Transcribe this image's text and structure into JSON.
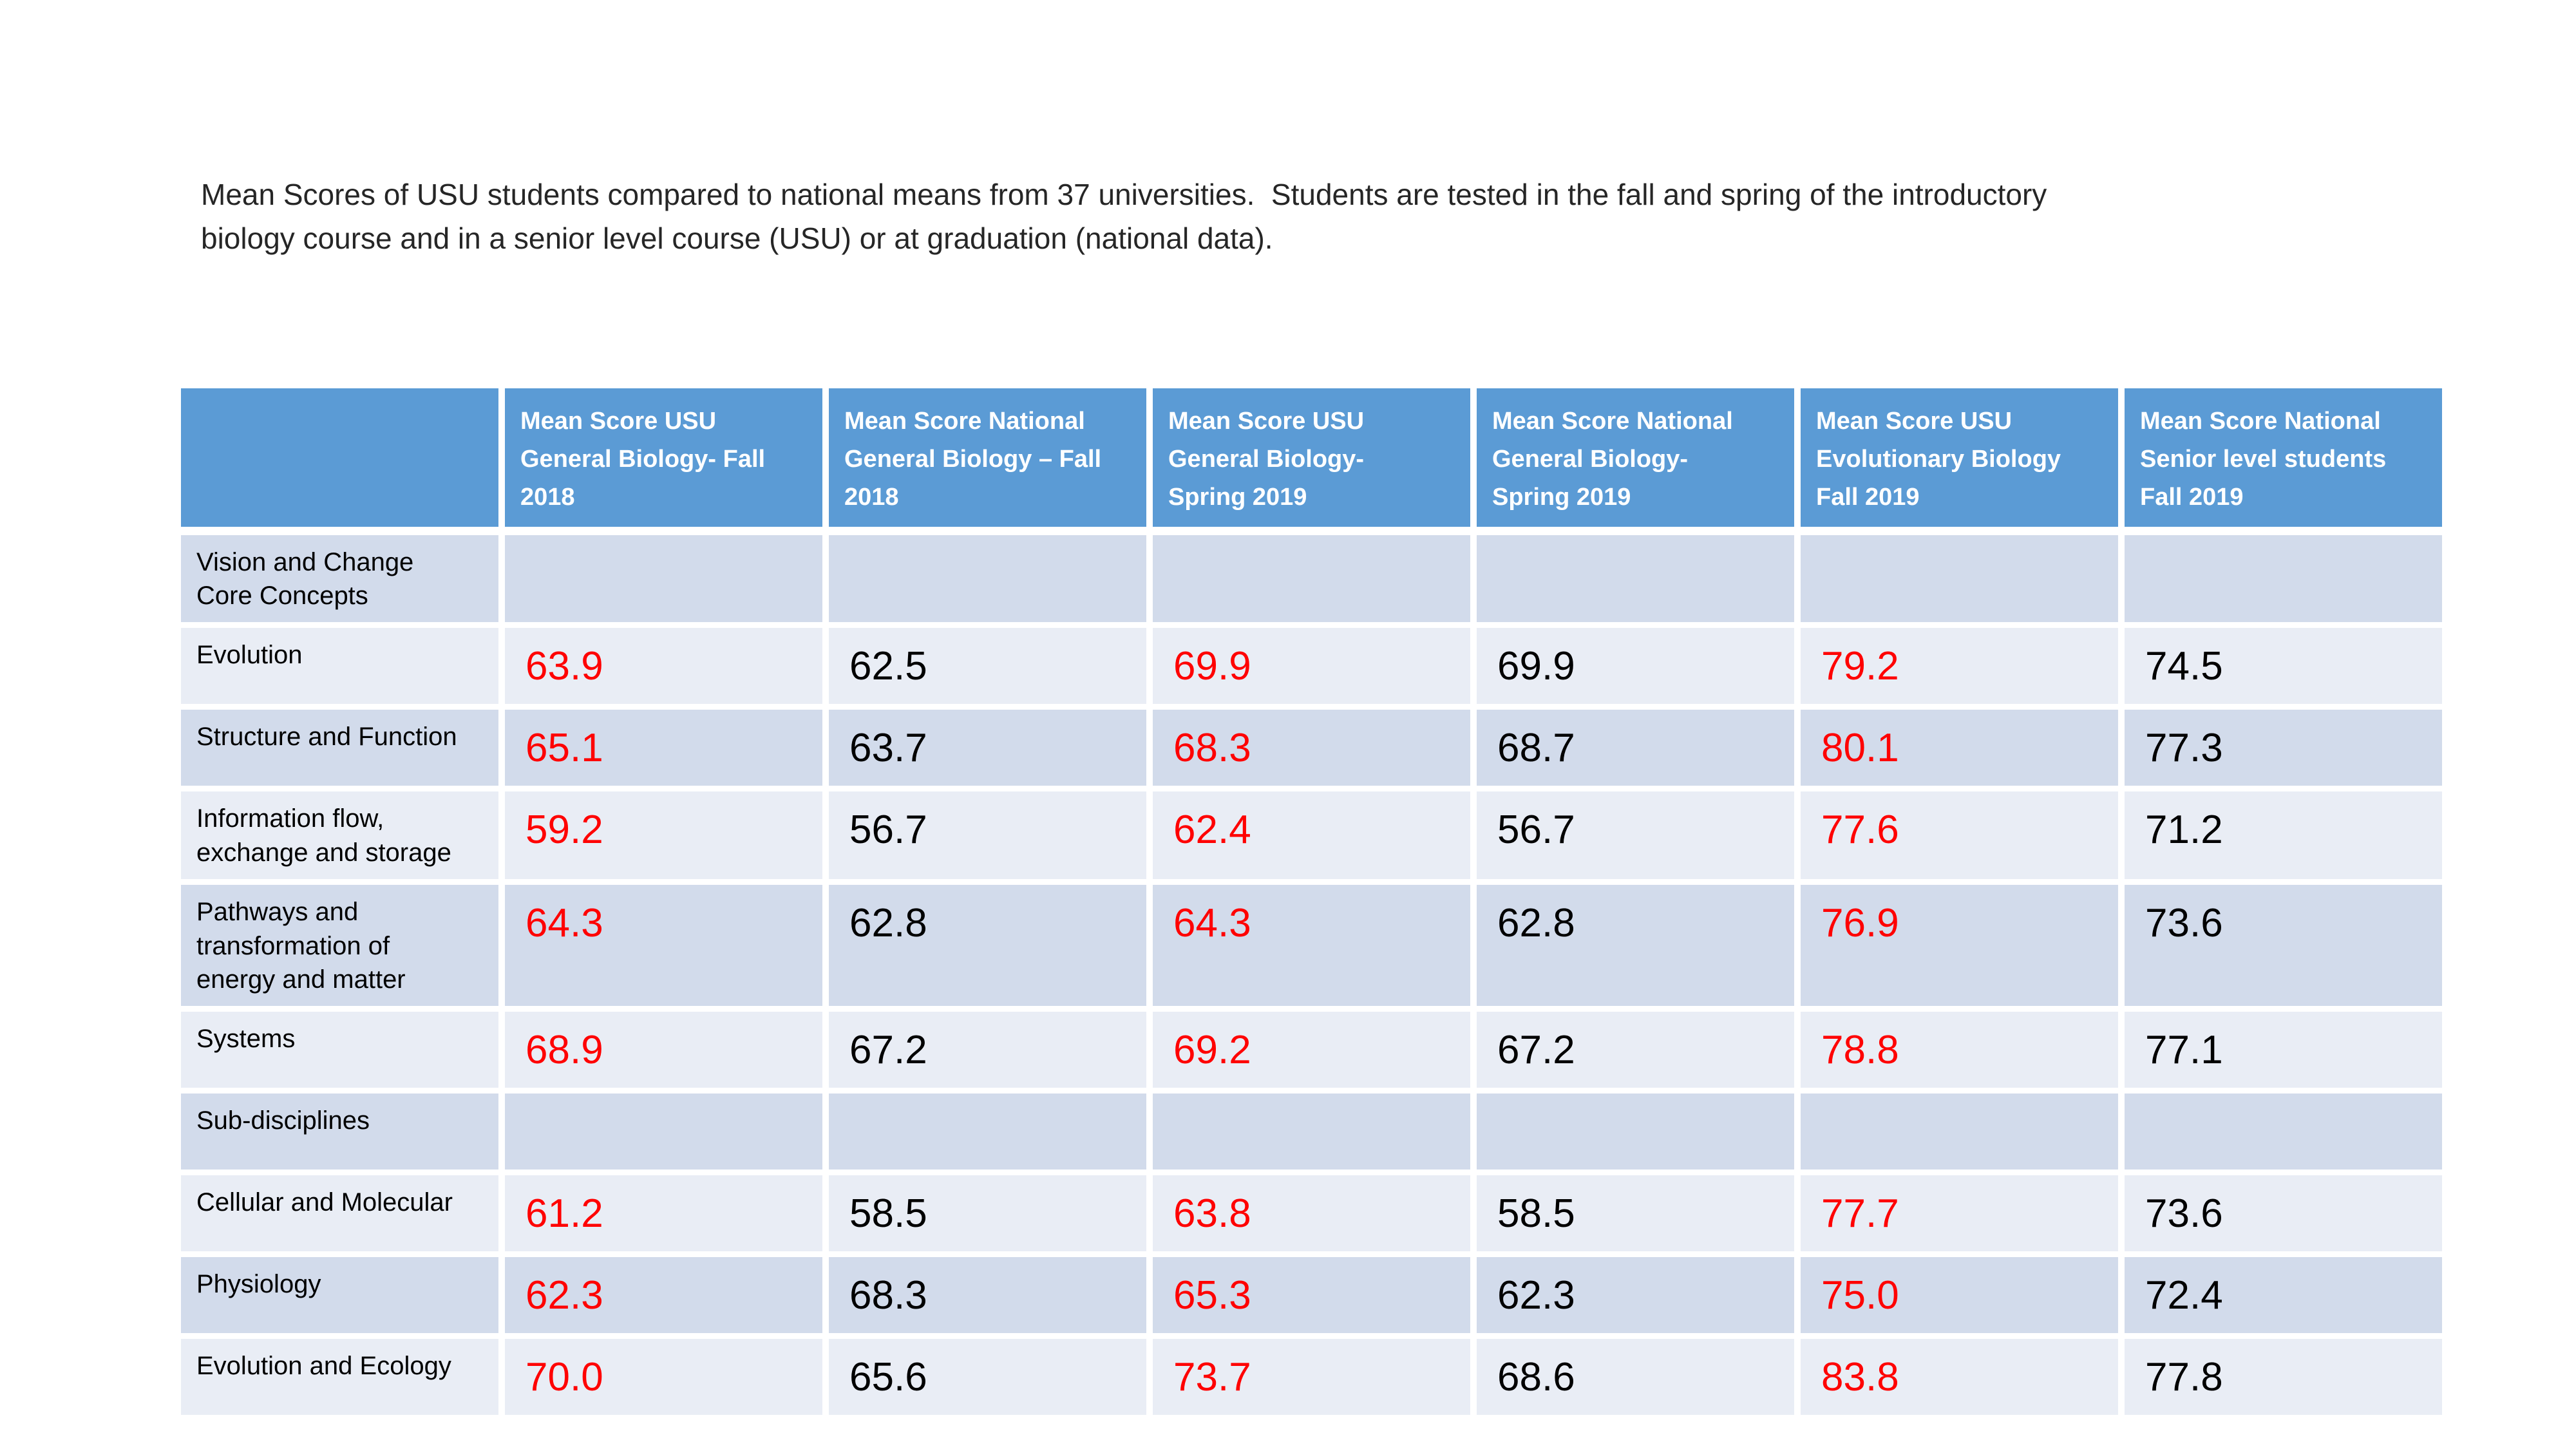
{
  "page": {
    "title": "Mean Scores of USU students compared to national means from 37 universities.  Students are tested in the fall and spring of the introductory\nbiology course and in a senior level course (USU) or at graduation (national data)."
  },
  "colors": {
    "header_bg": "#5B9BD5",
    "header_text": "#FFFFFF",
    "band_dark": "#D2DBEB",
    "band_light": "#E9EDF5",
    "usu_value": "#FF0000",
    "national_value": "#000000",
    "title_text": "#262626"
  },
  "chart_data": {
    "type": "table",
    "title": "Mean Scores of USU students compared to national means from 37 universities. Students are tested in the fall and spring of the introductory biology course and in a senior level course (USU) or at graduation (national data).",
    "columns": [
      "",
      "Mean Score USU\nGeneral Biology- Fall\n2018",
      "Mean Score National\nGeneral Biology – Fall\n2018",
      "Mean Score USU\nGeneral Biology-\nSpring 2019",
      "Mean Score National\nGeneral Biology-\nSpring 2019",
      "Mean Score USU\nEvolutionary Biology\nFall 2019",
      "Mean Score National\nSenior level students\nFall 2019"
    ],
    "usu_value_columns": [
      0,
      2,
      4
    ],
    "rows": [
      {
        "label": "Vision and Change\nCore Concepts",
        "values": [
          "",
          "",
          "",
          "",
          "",
          ""
        ]
      },
      {
        "label": "Evolution",
        "values": [
          "63.9",
          "62.5",
          "69.9",
          "69.9",
          "79.2",
          "74.5"
        ]
      },
      {
        "label": "Structure and Function",
        "values": [
          "65.1",
          "63.7",
          "68.3",
          "68.7",
          "80.1",
          "77.3"
        ]
      },
      {
        "label": "Information flow,\nexchange and storage",
        "values": [
          "59.2",
          "56.7",
          "62.4",
          "56.7",
          "77.6",
          "71.2"
        ]
      },
      {
        "label": "Pathways and\ntransformation of\nenergy and matter",
        "values": [
          "64.3",
          "62.8",
          "64.3",
          "62.8",
          "76.9",
          "73.6"
        ]
      },
      {
        "label": "Systems",
        "values": [
          "68.9",
          "67.2",
          "69.2",
          "67.2",
          "78.8",
          "77.1"
        ]
      },
      {
        "label": "Sub-disciplines",
        "values": [
          "",
          "",
          "",
          "",
          "",
          ""
        ]
      },
      {
        "label": "Cellular and Molecular",
        "values": [
          "61.2",
          "58.5",
          "63.8",
          "58.5",
          "77.7",
          "73.6"
        ]
      },
      {
        "label": "Physiology",
        "values": [
          "62.3",
          "68.3",
          "65.3",
          "62.3",
          "75.0",
          "72.4"
        ]
      },
      {
        "label": "Evolution and Ecology",
        "values": [
          "70.0",
          "65.6",
          "73.7",
          "68.6",
          "83.8",
          "77.8"
        ]
      }
    ]
  }
}
